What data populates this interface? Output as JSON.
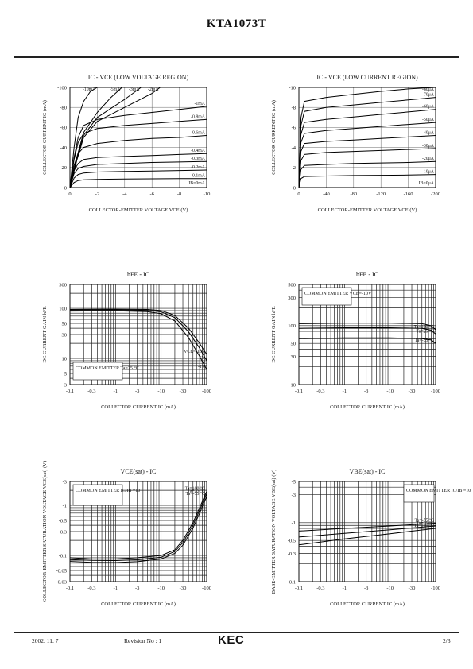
{
  "header": {
    "title": "KTA1073T"
  },
  "footer": {
    "date": "2002. 11. 7",
    "revision": "Revision No : 1",
    "logo": "KEC",
    "page": "2/3"
  },
  "chart_data": [
    {
      "id": "ic-vce-low-voltage",
      "type": "line",
      "title": "I_C - V_CE (LOW VOLTAGE REGION)",
      "xlabel": "COLLECTOR-EMITTER VOLTAGE V_CE (V)",
      "ylabel": "COLLECTOR CURRENT I_C (mA)",
      "xlim": [
        0,
        -10
      ],
      "ylim": [
        0,
        -100
      ],
      "xticks": [
        0,
        -2,
        -4,
        -6,
        -8,
        -10
      ],
      "yticks": [
        0,
        -20,
        -40,
        -60,
        -80,
        -100
      ],
      "series": [
        {
          "name": "-10mA",
          "x": [
            0,
            -0.3,
            -0.6,
            -1,
            -1.5,
            -2
          ],
          "y": [
            0,
            -40,
            -70,
            -86,
            -96,
            -102
          ]
        },
        {
          "name": "-5mA",
          "x": [
            0,
            -0.5,
            -1,
            -2,
            -3,
            -3.8
          ],
          "y": [
            0,
            -30,
            -55,
            -75,
            -90,
            -100
          ]
        },
        {
          "name": "-3mA",
          "x": [
            0,
            -0.5,
            -1,
            -2,
            -4,
            -5.2
          ],
          "y": [
            0,
            -28,
            -52,
            -70,
            -88,
            -100
          ]
        },
        {
          "name": "-2mA",
          "x": [
            0,
            -0.5,
            -1,
            -2,
            -4,
            -6,
            -6.6
          ],
          "y": [
            0,
            -27,
            -50,
            -66,
            -80,
            -94,
            -100
          ]
        },
        {
          "name": "-1mA",
          "x": [
            0,
            -0.3,
            -0.6,
            -1,
            -2,
            -4,
            -6,
            -8,
            -10
          ],
          "y": [
            0,
            -30,
            -50,
            -62,
            -68,
            -72,
            -75,
            -78,
            -81
          ]
        },
        {
          "name": "-0.8mA",
          "x": [
            0,
            -0.3,
            -0.6,
            -1,
            -2,
            -4,
            -6,
            -8,
            -10
          ],
          "y": [
            0,
            -28,
            -45,
            -54,
            -59,
            -62,
            -64,
            -66,
            -68
          ]
        },
        {
          "name": "-0.6mA",
          "x": [
            0,
            -0.3,
            -0.6,
            -1,
            -2,
            -4,
            -6,
            -8,
            -10
          ],
          "y": [
            0,
            -22,
            -34,
            -40,
            -44,
            -47,
            -49,
            -50,
            -52
          ]
        },
        {
          "name": "-0.4mA",
          "x": [
            0,
            -0.3,
            -0.6,
            -1,
            -2,
            -4,
            -6,
            -8,
            -10
          ],
          "y": [
            0,
            -17,
            -24,
            -28,
            -30,
            -31,
            -32,
            -33,
            -34
          ]
        },
        {
          "name": "-0.3mA",
          "x": [
            0,
            -0.3,
            -0.6,
            -1,
            -2,
            -4,
            -6,
            -8,
            -10
          ],
          "y": [
            0,
            -14,
            -19,
            -21,
            -23,
            -24,
            -25,
            -25.5,
            -26
          ]
        },
        {
          "name": "-0.2mA",
          "x": [
            0,
            -0.3,
            -0.6,
            -1,
            -2,
            -4,
            -6,
            -8,
            -10
          ],
          "y": [
            0,
            -9.5,
            -13,
            -14.5,
            -15.5,
            -16,
            -16.5,
            -17,
            -17.5
          ]
        },
        {
          "name": "-0.1mA",
          "x": [
            0,
            -0.3,
            -0.6,
            -1,
            -2,
            -4,
            -6,
            -8,
            -10
          ],
          "y": [
            0,
            -5,
            -7,
            -7.8,
            -8.2,
            -8.5,
            -8.7,
            -8.9,
            -9
          ]
        },
        {
          "name": "I_B=0mA",
          "x": [
            0,
            -10
          ],
          "y": [
            0,
            0
          ]
        }
      ]
    },
    {
      "id": "ic-vce-low-current",
      "type": "line",
      "title": "I_C - V_CE (LOW CURRENT REGION)",
      "xlabel": "COLLECTOR-EMITTER VOLTAGE V_CE (V)",
      "ylabel": "COLLECTOR CURRENT I_C (mA)",
      "xlim": [
        0,
        -200
      ],
      "ylim": [
        0,
        -10
      ],
      "xticks": [
        0,
        -40,
        -80,
        -120,
        -160,
        -200
      ],
      "yticks": [
        0,
        -2,
        -4,
        -6,
        -8,
        -10
      ],
      "series": [
        {
          "name": "-80μA",
          "x": [
            0,
            -3,
            -8,
            -40,
            -80,
            -120,
            -160,
            -200
          ],
          "y": [
            0,
            -7,
            -8.6,
            -9,
            -9.3,
            -9.6,
            -9.85,
            -10.1
          ]
        },
        {
          "name": "-70μA",
          "x": [
            0,
            -3,
            -8,
            -40,
            -80,
            -120,
            -160,
            -200
          ],
          "y": [
            0,
            -6.2,
            -7.6,
            -8,
            -8.25,
            -8.5,
            -8.75,
            -9
          ]
        },
        {
          "name": "-60μA",
          "x": [
            0,
            -3,
            -8,
            -40,
            -80,
            -120,
            -160,
            -200
          ],
          "y": [
            0,
            -5.3,
            -6.5,
            -6.8,
            -7.05,
            -7.3,
            -7.55,
            -7.8
          ]
        },
        {
          "name": "-50μA",
          "x": [
            0,
            -3,
            -8,
            -40,
            -80,
            -120,
            -160,
            -200
          ],
          "y": [
            0,
            -4.5,
            -5.4,
            -5.7,
            -5.9,
            -6.1,
            -6.3,
            -6.5
          ]
        },
        {
          "name": "-40μA",
          "x": [
            0,
            -3,
            -8,
            -40,
            -80,
            -120,
            -160,
            -200
          ],
          "y": [
            0,
            -3.6,
            -4.4,
            -4.6,
            -4.75,
            -4.9,
            -5.05,
            -5.2
          ]
        },
        {
          "name": "-30μA",
          "x": [
            0,
            -3,
            -8,
            -40,
            -80,
            -120,
            -160,
            -200
          ],
          "y": [
            0,
            -2.7,
            -3.3,
            -3.5,
            -3.6,
            -3.7,
            -3.8,
            -3.9
          ]
        },
        {
          "name": "-20μA",
          "x": [
            0,
            -3,
            -8,
            -40,
            -80,
            -120,
            -160,
            -200
          ],
          "y": [
            0,
            -1.8,
            -2.2,
            -2.3,
            -2.4,
            -2.45,
            -2.5,
            -2.6
          ]
        },
        {
          "name": "-10μA",
          "x": [
            0,
            -3,
            -8,
            -40,
            -80,
            -120,
            -160,
            -200
          ],
          "y": [
            0,
            -0.9,
            -1.1,
            -1.15,
            -1.2,
            -1.22,
            -1.25,
            -1.3
          ]
        },
        {
          "name": "I_B=0μA",
          "x": [
            0,
            -200
          ],
          "y": [
            0,
            0
          ]
        }
      ]
    },
    {
      "id": "hfe-ic-1",
      "type": "line",
      "title": "h_FE - I_C",
      "xlabel": "COLLECTOR CURRENT I_C (mA)",
      "ylabel": "DC CURRENT GAIN h_FE",
      "xscale": "log",
      "yscale": "log",
      "xlim": [
        0.1,
        100
      ],
      "ylim": [
        3,
        300
      ],
      "xticks": [
        0.1,
        0.3,
        1,
        3,
        10,
        30,
        100
      ],
      "xticklabels": [
        "-0.1",
        "-0.3",
        "-1",
        "-3",
        "-10",
        "-30",
        "-100"
      ],
      "yticks": [
        3,
        5,
        10,
        30,
        50,
        100,
        300
      ],
      "annotation": "COMMON EMITTER Ta=25 °C",
      "series": [
        {
          "name": "V_CE=-10V",
          "x": [
            0.1,
            1,
            5,
            10,
            20,
            40,
            70,
            100
          ],
          "y": [
            95,
            96,
            95,
            90,
            72,
            40,
            20,
            12
          ]
        },
        {
          "name": "-5V",
          "x": [
            0.1,
            1,
            5,
            10,
            20,
            40,
            70,
            100
          ],
          "y": [
            92,
            93,
            91,
            85,
            65,
            34,
            16,
            9
          ]
        },
        {
          "name": "-1V",
          "x": [
            0.1,
            1,
            5,
            10,
            20,
            40,
            70,
            100
          ],
          "y": [
            88,
            89,
            86,
            78,
            56,
            26,
            11,
            6
          ]
        }
      ]
    },
    {
      "id": "hfe-ic-2",
      "type": "line",
      "title": "h_FE - I_C",
      "xlabel": "COLLECTOR CURRENT I_C (mA)",
      "ylabel": "DC CURRENT GAIN h_FE",
      "xscale": "log",
      "yscale": "log",
      "xlim": [
        0.1,
        100
      ],
      "ylim": [
        10,
        500
      ],
      "xticks": [
        0.1,
        0.3,
        1,
        3,
        10,
        30,
        100
      ],
      "xticklabels": [
        "-0.1",
        "-0.3",
        "-1",
        "-3",
        "-10",
        "-30",
        "-100"
      ],
      "yticks": [
        10,
        30,
        50,
        100,
        300,
        500
      ],
      "annotation": "COMMON EMITTER V_CE=-10V",
      "series": [
        {
          "name": "Ta=100 °C",
          "x": [
            0.1,
            1,
            10,
            50,
            80,
            100
          ],
          "y": [
            108,
            110,
            110,
            108,
            100,
            85
          ]
        },
        {
          "name": "Ta=25 °C",
          "x": [
            0.1,
            1,
            10,
            50,
            80,
            100
          ],
          "y": [
            90,
            92,
            92,
            90,
            84,
            72
          ]
        },
        {
          "name": "Ta=-55 °C",
          "x": [
            0.1,
            1,
            10,
            50,
            80,
            100
          ],
          "y": [
            60,
            62,
            62,
            60,
            57,
            50
          ]
        }
      ]
    },
    {
      "id": "vcesat-ic",
      "type": "line",
      "title": "V_CE(sat) - I_C",
      "xlabel": "COLLECTOR CURRENT I_C (mA)",
      "ylabel": "COLLECTOR-EMITTER SATURATION VOLTAGE V_CE(sat) (V)",
      "xscale": "log",
      "yscale": "log",
      "xlim": [
        0.1,
        100
      ],
      "ylim": [
        0.03,
        3
      ],
      "xticks": [
        0.1,
        0.3,
        1,
        3,
        10,
        30,
        100
      ],
      "xticklabels": [
        "-0.1",
        "-0.3",
        "-1",
        "-3",
        "-10",
        "-30",
        "-100"
      ],
      "yticks": [
        0.03,
        0.05,
        0.1,
        0.3,
        0.5,
        1,
        3
      ],
      "yticklabels": [
        "-0.03",
        "-0.05",
        "-0.1",
        "-0.3",
        "-0.5",
        "-1",
        "-3"
      ],
      "annotation": "COMMON EMITTER  I_C/I_B =10",
      "series": [
        {
          "name": "Ta=100 °C",
          "x": [
            0.1,
            0.3,
            1,
            3,
            10,
            20,
            30,
            50,
            70,
            100
          ],
          "y": [
            0.09,
            0.085,
            0.085,
            0.09,
            0.1,
            0.13,
            0.2,
            0.45,
            0.9,
            1.9
          ]
        },
        {
          "name": "Ta=25 °C",
          "x": [
            0.1,
            0.3,
            1,
            3,
            10,
            20,
            30,
            50,
            70,
            100
          ],
          "y": [
            0.083,
            0.08,
            0.079,
            0.082,
            0.092,
            0.12,
            0.18,
            0.4,
            0.8,
            1.7
          ]
        },
        {
          "name": "Ta=-55 °C",
          "x": [
            0.1,
            0.3,
            1,
            3,
            10,
            20,
            30,
            50,
            70,
            100
          ],
          "y": [
            0.076,
            0.073,
            0.072,
            0.075,
            0.085,
            0.11,
            0.16,
            0.35,
            0.7,
            1.5
          ]
        }
      ]
    },
    {
      "id": "vbesat-ic",
      "type": "line",
      "title": "V_BE(sat) - I_C",
      "xlabel": "COLLECTOR CURRENT I_C (mA)",
      "ylabel": "BASE-EMITTER SATURATION VOLTAGE V_BE(sat) (V)",
      "xscale": "log",
      "yscale": "log",
      "xlim": [
        0.1,
        100
      ],
      "ylim": [
        0.1,
        5
      ],
      "xticks": [
        0.1,
        0.3,
        1,
        3,
        10,
        30,
        100
      ],
      "xticklabels": [
        "-0.1",
        "-0.3",
        "-1",
        "-3",
        "-10",
        "-30",
        "-100"
      ],
      "yticks": [
        0.1,
        0.3,
        0.5,
        1,
        3,
        5
      ],
      "yticklabels": [
        "-0.1",
        "-0.3",
        "-0.5",
        "-1",
        "-3",
        "-5"
      ],
      "annotation": "COMMON EMITTER I_C/I_B =10",
      "series": [
        {
          "name": "Ta=-55 °C",
          "x": [
            0.1,
            1,
            10,
            100
          ],
          "y": [
            0.72,
            0.8,
            0.88,
            0.98
          ]
        },
        {
          "name": "Ta=25 °C",
          "x": [
            0.1,
            1,
            10,
            100
          ],
          "y": [
            0.57,
            0.66,
            0.76,
            0.88
          ]
        },
        {
          "name": "Ta=100 °C",
          "x": [
            0.1,
            1,
            10,
            100
          ],
          "y": [
            0.42,
            0.53,
            0.65,
            0.8
          ]
        }
      ]
    }
  ]
}
